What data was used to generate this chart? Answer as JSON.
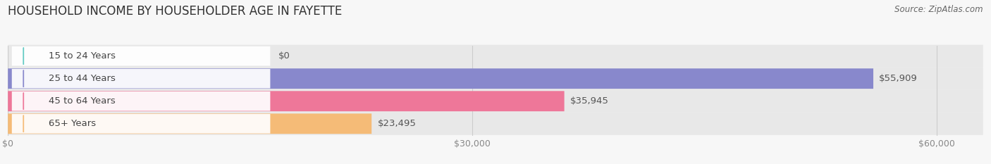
{
  "title": "HOUSEHOLD INCOME BY HOUSEHOLDER AGE IN FAYETTE",
  "source": "Source: ZipAtlas.com",
  "categories": [
    "15 to 24 Years",
    "25 to 44 Years",
    "45 to 64 Years",
    "65+ Years"
  ],
  "values": [
    0,
    55909,
    35945,
    23495
  ],
  "bar_colors": [
    "#62cac3",
    "#8888cc",
    "#ee7799",
    "#f5bb77"
  ],
  "label_colors": [
    "#62cac3",
    "#8888cc",
    "#ee7799",
    "#f5bb77"
  ],
  "value_labels": [
    "$0",
    "$55,909",
    "$35,945",
    "$23,495"
  ],
  "x_ticks": [
    0,
    30000,
    60000
  ],
  "x_tick_labels": [
    "$0",
    "$30,000",
    "$60,000"
  ],
  "xlim_max": 63000,
  "title_fontsize": 12,
  "source_fontsize": 8.5,
  "bar_label_fontsize": 9.5,
  "value_label_fontsize": 9.5,
  "tick_fontsize": 9,
  "background_color": "#f7f7f7",
  "bar_row_bg": "#e8e8e8",
  "title_color": "#333333",
  "source_color": "#666666",
  "tick_color": "#888888",
  "value_label_color": "#555555",
  "cat_text_color": "#444444",
  "grid_color": "#cccccc"
}
